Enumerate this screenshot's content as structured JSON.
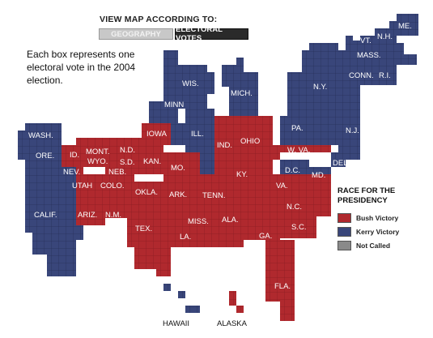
{
  "header": {
    "title": "VIEW MAP ACCORDING TO:",
    "tabs": [
      {
        "label": "GEOGRAPHY",
        "active": false
      },
      {
        "label": "ELECTORAL VOTES",
        "active": true
      }
    ]
  },
  "description": "Each box represents one electoral vote in the 2004 election.",
  "colors": {
    "bush": "#b0292e",
    "kerry": "#39467a",
    "not_called": "#8a8a8a"
  },
  "map": {
    "states": [
      {
        "label": "ME.",
        "party": "kerry"
      },
      {
        "label": "N.H.",
        "party": "kerry"
      },
      {
        "label": "VT.",
        "party": "kerry"
      },
      {
        "label": "MASS.",
        "party": "kerry"
      },
      {
        "label": "CONN.",
        "party": "kerry"
      },
      {
        "label": "R.I.",
        "party": "kerry"
      },
      {
        "label": "N.Y.",
        "party": "kerry"
      },
      {
        "label": "PA.",
        "party": "kerry"
      },
      {
        "label": "N.J.",
        "party": "kerry"
      },
      {
        "label": "DEL.",
        "party": "kerry"
      },
      {
        "label": "MD.",
        "party": "kerry"
      },
      {
        "label": "D.C.",
        "party": "kerry"
      },
      {
        "label": "W. VA.",
        "party": "bush"
      },
      {
        "label": "VA.",
        "party": "bush"
      },
      {
        "label": "N.C.",
        "party": "bush"
      },
      {
        "label": "S.C.",
        "party": "bush"
      },
      {
        "label": "GA.",
        "party": "bush"
      },
      {
        "label": "FLA.",
        "party": "bush"
      },
      {
        "label": "ALA.",
        "party": "bush"
      },
      {
        "label": "MISS.",
        "party": "bush"
      },
      {
        "label": "TENN.",
        "party": "bush"
      },
      {
        "label": "KY.",
        "party": "bush"
      },
      {
        "label": "OHIO",
        "party": "bush"
      },
      {
        "label": "IND.",
        "party": "bush"
      },
      {
        "label": "MICH.",
        "party": "kerry"
      },
      {
        "label": "ILL.",
        "party": "kerry"
      },
      {
        "label": "WIS.",
        "party": "kerry"
      },
      {
        "label": "MINN",
        "party": "kerry"
      },
      {
        "label": "IOWA",
        "party": "bush"
      },
      {
        "label": "MO.",
        "party": "bush"
      },
      {
        "label": "ARK.",
        "party": "bush"
      },
      {
        "label": "LA.",
        "party": "bush"
      },
      {
        "label": "TEX.",
        "party": "bush"
      },
      {
        "label": "OKLA.",
        "party": "bush"
      },
      {
        "label": "KAN.",
        "party": "bush"
      },
      {
        "label": "NEB.",
        "party": "bush"
      },
      {
        "label": "S.D.",
        "party": "bush"
      },
      {
        "label": "N.D.",
        "party": "bush"
      },
      {
        "label": "MONT.",
        "party": "bush"
      },
      {
        "label": "WYO.",
        "party": "bush"
      },
      {
        "label": "COLO.",
        "party": "bush"
      },
      {
        "label": "N.M.",
        "party": "bush"
      },
      {
        "label": "ARIZ.",
        "party": "bush"
      },
      {
        "label": "UTAH",
        "party": "bush"
      },
      {
        "label": "NEV.",
        "party": "bush"
      },
      {
        "label": "ID.",
        "party": "bush"
      },
      {
        "label": "WASH.",
        "party": "kerry"
      },
      {
        "label": "ORE.",
        "party": "kerry"
      },
      {
        "label": "CALIF.",
        "party": "kerry"
      },
      {
        "label": "HAWAII",
        "party": "kerry"
      },
      {
        "label": "ALASKA",
        "party": "bush"
      }
    ]
  },
  "legend": {
    "title_line1": "RACE FOR THE",
    "title_line2": "PRESIDENCY",
    "items": [
      {
        "label": "Bush Victory",
        "key": "bush"
      },
      {
        "label": "Kerry Victory",
        "key": "kerry"
      },
      {
        "label": "Not Called",
        "key": "not_called"
      }
    ]
  }
}
